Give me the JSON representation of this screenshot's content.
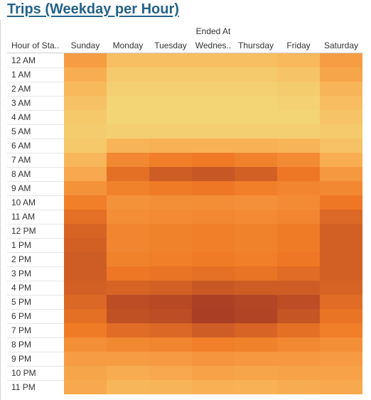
{
  "chart_data": {
    "type": "heatmap",
    "title": "Trips (Weekday per Hour)",
    "column_field": "Ended At",
    "row_field": "Hour of Sta..",
    "columns": [
      "Sunday",
      "Monday",
      "Tuesday",
      "Wednes..",
      "Thursday",
      "Friday",
      "Saturday"
    ],
    "rows": [
      "12 AM",
      "1 AM",
      "2 AM",
      "3 AM",
      "4 AM",
      "5 AM",
      "6 AM",
      "7 AM",
      "8 AM",
      "9 AM",
      "10 AM",
      "11 AM",
      "12 PM",
      "1 PM",
      "2 PM",
      "3 PM",
      "4 PM",
      "5 PM",
      "6 PM",
      "7 PM",
      "8 PM",
      "9 PM",
      "10 PM",
      "11 PM"
    ],
    "values": [
      [
        0.45,
        0.2,
        0.2,
        0.2,
        0.2,
        0.25,
        0.45
      ],
      [
        0.35,
        0.1,
        0.1,
        0.1,
        0.1,
        0.15,
        0.4
      ],
      [
        0.25,
        0.05,
        0.05,
        0.05,
        0.05,
        0.08,
        0.3
      ],
      [
        0.18,
        0.0,
        0.0,
        0.0,
        0.0,
        0.03,
        0.22
      ],
      [
        0.12,
        0.0,
        0.0,
        0.0,
        0.0,
        0.0,
        0.15
      ],
      [
        0.08,
        0.05,
        0.05,
        0.05,
        0.05,
        0.05,
        0.1
      ],
      [
        0.12,
        0.3,
        0.32,
        0.32,
        0.32,
        0.3,
        0.18
      ],
      [
        0.28,
        0.58,
        0.64,
        0.67,
        0.62,
        0.56,
        0.35
      ],
      [
        0.38,
        0.72,
        0.82,
        0.85,
        0.8,
        0.68,
        0.48
      ],
      [
        0.52,
        0.62,
        0.66,
        0.68,
        0.64,
        0.6,
        0.58
      ],
      [
        0.64,
        0.52,
        0.54,
        0.55,
        0.53,
        0.56,
        0.68
      ],
      [
        0.72,
        0.55,
        0.56,
        0.58,
        0.56,
        0.6,
        0.76
      ],
      [
        0.78,
        0.6,
        0.62,
        0.64,
        0.62,
        0.66,
        0.8
      ],
      [
        0.8,
        0.6,
        0.62,
        0.64,
        0.62,
        0.66,
        0.8
      ],
      [
        0.82,
        0.62,
        0.64,
        0.66,
        0.64,
        0.68,
        0.8
      ],
      [
        0.82,
        0.68,
        0.7,
        0.72,
        0.7,
        0.74,
        0.8
      ],
      [
        0.8,
        0.78,
        0.8,
        0.84,
        0.82,
        0.82,
        0.78
      ],
      [
        0.76,
        0.9,
        0.92,
        0.97,
        0.94,
        0.9,
        0.74
      ],
      [
        0.72,
        0.88,
        0.9,
        0.98,
        0.95,
        0.86,
        0.7
      ],
      [
        0.66,
        0.74,
        0.76,
        0.82,
        0.78,
        0.72,
        0.64
      ],
      [
        0.54,
        0.58,
        0.6,
        0.64,
        0.62,
        0.58,
        0.54
      ],
      [
        0.45,
        0.45,
        0.46,
        0.5,
        0.48,
        0.48,
        0.46
      ],
      [
        0.4,
        0.36,
        0.38,
        0.42,
        0.4,
        0.42,
        0.42
      ],
      [
        0.38,
        0.28,
        0.3,
        0.33,
        0.32,
        0.36,
        0.38
      ]
    ],
    "color_scale": [
      "#f3d576",
      "#f9b055",
      "#f07a25",
      "#a53a24"
    ],
    "grid": false,
    "legend": "none"
  }
}
